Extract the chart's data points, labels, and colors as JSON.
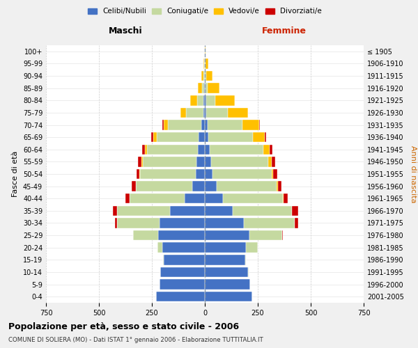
{
  "age_groups": [
    "0-4",
    "5-9",
    "10-14",
    "15-19",
    "20-24",
    "25-29",
    "30-34",
    "35-39",
    "40-44",
    "45-49",
    "50-54",
    "55-59",
    "60-64",
    "65-69",
    "70-74",
    "75-79",
    "80-84",
    "85-89",
    "90-94",
    "95-99",
    "100+"
  ],
  "birth_years": [
    "2001-2005",
    "1996-2000",
    "1991-1995",
    "1986-1990",
    "1981-1985",
    "1976-1980",
    "1971-1975",
    "1966-1970",
    "1961-1965",
    "1956-1960",
    "1951-1955",
    "1946-1950",
    "1941-1945",
    "1936-1940",
    "1931-1935",
    "1926-1930",
    "1921-1925",
    "1916-1920",
    "1911-1915",
    "1906-1910",
    "≤ 1905"
  ],
  "colors": {
    "celibi": "#4472c4",
    "coniugati": "#c5d9a0",
    "vedovi": "#ffc000",
    "divorziati": "#cc0000"
  },
  "males": {
    "celibi": [
      230,
      215,
      210,
      195,
      200,
      220,
      215,
      165,
      95,
      60,
      42,
      38,
      32,
      28,
      18,
      8,
      5,
      2,
      1,
      0,
      0
    ],
    "coniugati": [
      0,
      0,
      1,
      4,
      25,
      120,
      200,
      250,
      260,
      265,
      265,
      255,
      240,
      200,
      155,
      80,
      30,
      10,
      4,
      2,
      0
    ],
    "vedovi": [
      0,
      0,
      0,
      0,
      0,
      0,
      0,
      1,
      1,
      2,
      3,
      5,
      10,
      15,
      22,
      28,
      35,
      20,
      10,
      5,
      0
    ],
    "divorziati": [
      0,
      0,
      0,
      0,
      0,
      0,
      8,
      18,
      18,
      18,
      12,
      18,
      15,
      10,
      5,
      0,
      0,
      0,
      0,
      0,
      0
    ]
  },
  "females": {
    "celibi": [
      225,
      215,
      205,
      190,
      195,
      210,
      185,
      130,
      85,
      55,
      35,
      30,
      22,
      18,
      12,
      8,
      5,
      2,
      1,
      1,
      0
    ],
    "coniugati": [
      0,
      0,
      1,
      5,
      55,
      155,
      240,
      280,
      285,
      285,
      280,
      270,
      255,
      210,
      165,
      100,
      45,
      12,
      5,
      2,
      0
    ],
    "vedovi": [
      0,
      0,
      0,
      0,
      0,
      0,
      0,
      1,
      2,
      5,
      8,
      15,
      30,
      55,
      80,
      95,
      90,
      55,
      30,
      15,
      3
    ],
    "divorziati": [
      0,
      0,
      0,
      0,
      0,
      2,
      15,
      30,
      18,
      18,
      18,
      18,
      12,
      5,
      2,
      0,
      0,
      0,
      0,
      0,
      0
    ]
  },
  "title": "Popolazione per età, sesso e stato civile - 2006",
  "subtitle": "COMUNE DI SOLIERA (MO) - Dati ISTAT 1° gennaio 2006 - Elaborazione TUTTITALIA.IT",
  "xlabel_left": "Maschi",
  "xlabel_right": "Femmine",
  "ylabel_left": "Fasce di età",
  "ylabel_right": "Anni di nascita",
  "xlim": 750,
  "legend_labels": [
    "Celibi/Nubili",
    "Coniugati/e",
    "Vedovi/e",
    "Divorziati/e"
  ],
  "bg_color": "#f0f0f0",
  "plot_bg": "#ffffff"
}
